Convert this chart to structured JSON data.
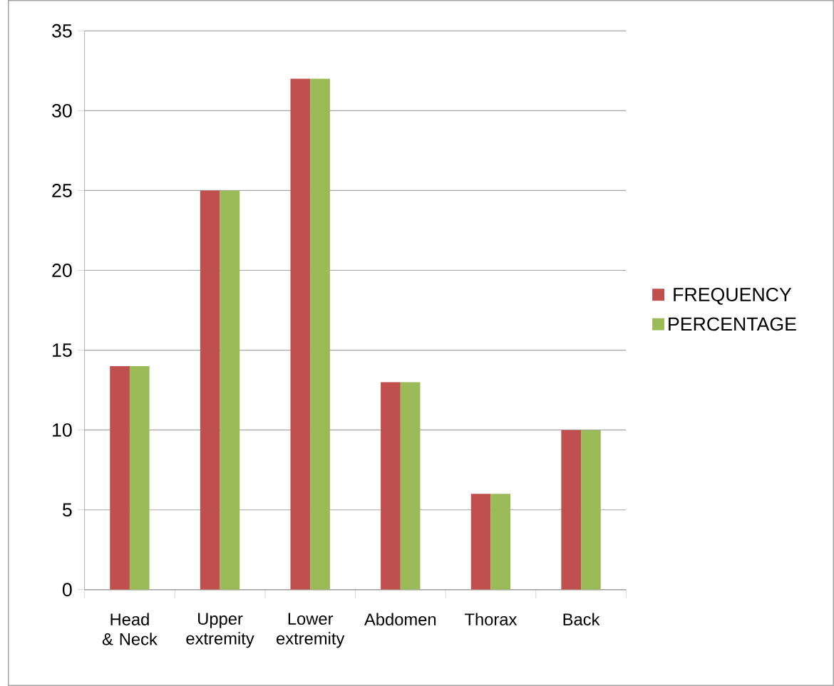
{
  "chart_data": {
    "type": "bar",
    "categories": [
      "Head & Neck",
      "Upper extremity",
      "Lower extremity",
      "Abdomen",
      "Thorax",
      "Back"
    ],
    "series": [
      {
        "name": "FREQUENCY",
        "color": "#c0504d",
        "values": [
          14,
          25,
          32,
          13,
          6,
          10
        ]
      },
      {
        "name": "PERCENTAGE",
        "color": "#9bbb59",
        "values": [
          14,
          25,
          32,
          13,
          6,
          10
        ]
      }
    ],
    "ylim": [
      0,
      35
    ],
    "yticks": [
      0,
      5,
      10,
      15,
      20,
      25,
      30,
      35
    ],
    "grid": "y",
    "legend": "right"
  }
}
